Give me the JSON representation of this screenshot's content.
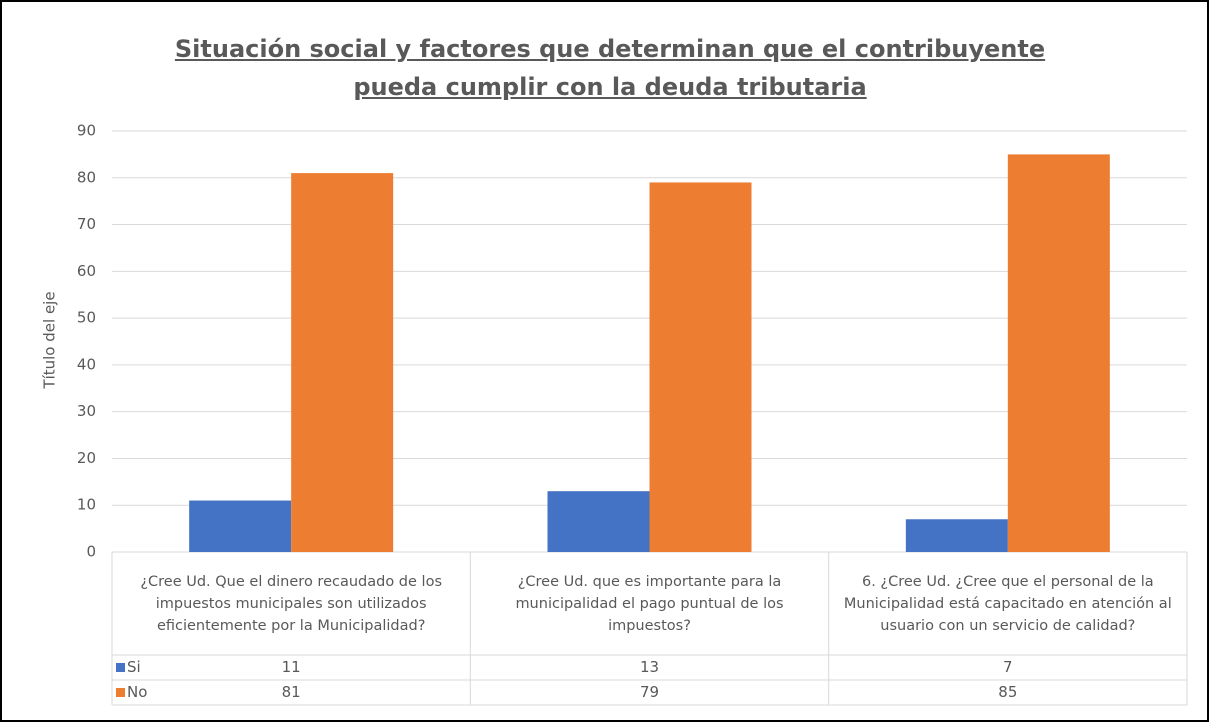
{
  "chart_data": {
    "type": "bar",
    "title": "Situación social y factores que determinan que el contribuyente pueda cumplir con la deuda tributaria",
    "y_label": "Título del eje",
    "categories": [
      "¿Cree Ud. Que el dinero recaudado de los impuestos municipales son utilizados eficientemente por la Municipalidad?",
      "¿Cree Ud. que es importante para la municipalidad el pago puntual de los impuestos?",
      "6. ¿Cree Ud. ¿Cree que el personal de la Municipalidad está capacitado en atención al usuario con un servicio de calidad?"
    ],
    "series": [
      {
        "name": "Si",
        "color": "#4472c4",
        "values": [
          11,
          13,
          7
        ]
      },
      {
        "name": "No",
        "color": "#ed7d31",
        "values": [
          81,
          79,
          85
        ]
      }
    ],
    "ylim": [
      0,
      90
    ],
    "yticks": [
      0,
      10,
      20,
      30,
      40,
      50,
      60,
      70,
      80,
      90
    ],
    "grid": true,
    "data_table": true
  }
}
